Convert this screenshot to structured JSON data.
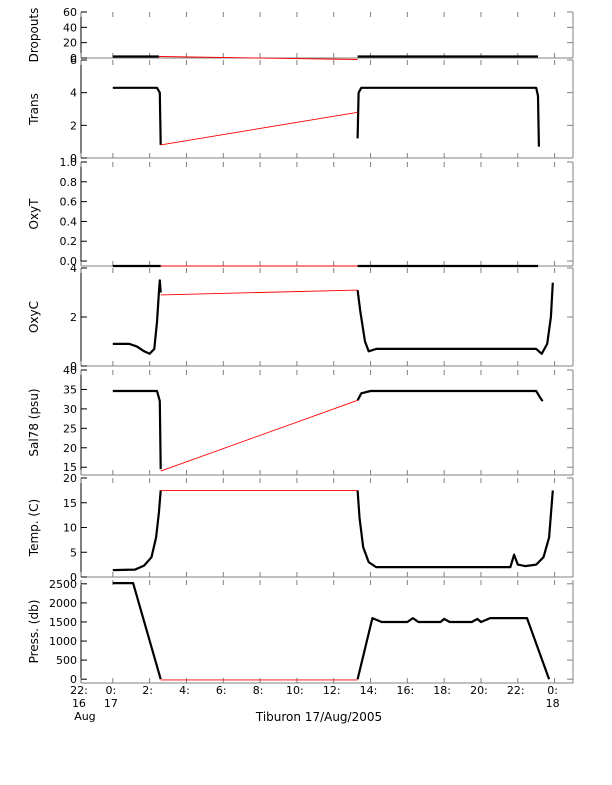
{
  "caption": "Tiburon 17/Aug/2005",
  "colors": {
    "data": "#000000",
    "interp": "#ff0000",
    "axis": "#000000",
    "grid_ticks": "#808080"
  },
  "chart_data": [
    {
      "type": "line",
      "ylabel": "Dropouts",
      "ylim": [
        0,
        60
      ],
      "yticks": [
        0,
        20,
        40,
        60
      ],
      "xlim": [
        -1.73,
        25
      ],
      "series": [
        {
          "kind": "data",
          "points": [
            [
              0,
              2
            ],
            [
              2.5,
              2
            ]
          ]
        },
        {
          "kind": "data",
          "points": [
            [
              13.3,
              2
            ],
            [
              23.1,
              2
            ]
          ]
        },
        {
          "kind": "interp",
          "points": [
            [
              2.5,
              2
            ],
            [
              13.3,
              -2
            ]
          ]
        }
      ]
    },
    {
      "type": "line",
      "ylabel": "Trans",
      "ylim": [
        0,
        6
      ],
      "yticks": [
        0,
        2,
        4,
        6
      ],
      "xlim": [
        -1.73,
        25
      ],
      "series": [
        {
          "kind": "data",
          "points": [
            [
              0,
              4.3
            ],
            [
              2.4,
              4.3
            ],
            [
              2.55,
              4.0
            ],
            [
              2.6,
              0.8
            ]
          ]
        },
        {
          "kind": "data",
          "points": [
            [
              13.3,
              1.2
            ],
            [
              13.35,
              4.0
            ],
            [
              13.5,
              4.3
            ],
            [
              23.0,
              4.3
            ],
            [
              23.1,
              3.8
            ],
            [
              23.15,
              0.7
            ]
          ]
        },
        {
          "kind": "interp",
          "points": [
            [
              2.6,
              0.8
            ],
            [
              13.3,
              2.8
            ]
          ]
        }
      ]
    },
    {
      "type": "line",
      "ylabel": "OxyT",
      "ylim": [
        -0.05,
        1.0
      ],
      "yticks": [
        0.0,
        0.2,
        0.4,
        0.6,
        0.8,
        1.0
      ],
      "ytick_labels": [
        "0.0",
        "0.2",
        "0.4",
        "0.6",
        "0.8",
        "1.0"
      ],
      "xlim": [
        -1.73,
        25
      ],
      "series": [
        {
          "kind": "data",
          "points": [
            [
              0,
              -0.05
            ],
            [
              2.6,
              -0.05
            ]
          ]
        },
        {
          "kind": "data",
          "points": [
            [
              13.3,
              -0.05
            ],
            [
              23.1,
              -0.05
            ]
          ]
        },
        {
          "kind": "interp",
          "points": [
            [
              2.6,
              -0.05
            ],
            [
              13.3,
              -0.05
            ]
          ]
        }
      ]
    },
    {
      "type": "line",
      "ylabel": "OxyC",
      "ylim": [
        0,
        4
      ],
      "yticks": [
        0,
        2,
        4
      ],
      "xlim": [
        -1.73,
        25
      ],
      "series": [
        {
          "kind": "data",
          "points": [
            [
              0,
              0.9
            ],
            [
              0.9,
              0.9
            ],
            [
              1.3,
              0.8
            ],
            [
              1.7,
              0.6
            ],
            [
              2.0,
              0.5
            ],
            [
              2.25,
              0.7
            ],
            [
              2.4,
              1.8
            ],
            [
              2.5,
              3.0
            ],
            [
              2.55,
              3.5
            ],
            [
              2.6,
              3.0
            ]
          ]
        },
        {
          "kind": "data",
          "points": [
            [
              13.3,
              3.1
            ],
            [
              13.45,
              2.2
            ],
            [
              13.7,
              1.0
            ],
            [
              13.9,
              0.6
            ],
            [
              14.3,
              0.7
            ],
            [
              23.0,
              0.7
            ],
            [
              23.3,
              0.5
            ],
            [
              23.6,
              0.9
            ],
            [
              23.8,
              2.0
            ],
            [
              23.9,
              3.4
            ]
          ]
        },
        {
          "kind": "interp",
          "points": [
            [
              2.6,
              2.9
            ],
            [
              13.3,
              3.1
            ]
          ]
        }
      ]
    },
    {
      "type": "line",
      "ylabel": "Sal78 (psu)",
      "ylim": [
        13,
        40
      ],
      "yticks": [
        15,
        20,
        25,
        30,
        35,
        40
      ],
      "xlim": [
        -1.73,
        25
      ],
      "series": [
        {
          "kind": "data",
          "points": [
            [
              0,
              34.6
            ],
            [
              2.4,
              34.6
            ],
            [
              2.55,
              32.0
            ],
            [
              2.6,
              14.5
            ]
          ]
        },
        {
          "kind": "data",
          "points": [
            [
              13.3,
              32.2
            ],
            [
              13.5,
              34.0
            ],
            [
              14.0,
              34.6
            ],
            [
              23.0,
              34.6
            ],
            [
              23.2,
              33.0
            ],
            [
              23.35,
              32.0
            ]
          ]
        },
        {
          "kind": "interp",
          "points": [
            [
              2.6,
              14.0
            ],
            [
              13.3,
              32.2
            ]
          ]
        }
      ]
    },
    {
      "type": "line",
      "ylabel": "Temp. (C)",
      "ylim": [
        0,
        20
      ],
      "yticks": [
        0,
        5,
        10,
        15,
        20
      ],
      "xlim": [
        -1.73,
        25
      ],
      "series": [
        {
          "kind": "data",
          "points": [
            [
              0,
              1.4
            ],
            [
              1.2,
              1.5
            ],
            [
              1.7,
              2.3
            ],
            [
              2.1,
              4.0
            ],
            [
              2.35,
              8.0
            ],
            [
              2.5,
              13.0
            ],
            [
              2.6,
              17.5
            ]
          ]
        },
        {
          "kind": "data",
          "points": [
            [
              13.3,
              17.5
            ],
            [
              13.4,
              12.0
            ],
            [
              13.6,
              6.0
            ],
            [
              13.9,
              3.0
            ],
            [
              14.3,
              2.0
            ],
            [
              21.6,
              2.0
            ],
            [
              21.8,
              4.5
            ],
            [
              22.0,
              2.5
            ],
            [
              22.4,
              2.2
            ],
            [
              23.0,
              2.5
            ],
            [
              23.4,
              4.0
            ],
            [
              23.7,
              8.0
            ],
            [
              23.9,
              17.5
            ]
          ]
        },
        {
          "kind": "interp",
          "points": [
            [
              2.6,
              17.5
            ],
            [
              13.3,
              17.5
            ]
          ]
        }
      ]
    },
    {
      "type": "line",
      "ylabel": "Press. (db)",
      "ylim": [
        -100,
        2600
      ],
      "yticks": [
        0,
        500,
        1000,
        1500,
        2000,
        2500
      ],
      "xlim": [
        -1.73,
        25
      ],
      "series": [
        {
          "kind": "data",
          "points": [
            [
              0,
              2520
            ],
            [
              1.1,
              2520
            ],
            [
              2.6,
              0
            ]
          ]
        },
        {
          "kind": "data",
          "points": [
            [
              13.3,
              0
            ],
            [
              14.1,
              1600
            ],
            [
              14.6,
              1500
            ],
            [
              16.0,
              1500
            ],
            [
              16.3,
              1600
            ],
            [
              16.6,
              1500
            ],
            [
              17.8,
              1500
            ],
            [
              18.0,
              1580
            ],
            [
              18.3,
              1500
            ],
            [
              19.5,
              1500
            ],
            [
              19.8,
              1580
            ],
            [
              20.0,
              1500
            ],
            [
              20.5,
              1600
            ],
            [
              22.5,
              1600
            ],
            [
              23.7,
              0
            ]
          ]
        },
        {
          "kind": "interp",
          "points": [
            [
              2.6,
              -20
            ],
            [
              13.3,
              -20
            ]
          ]
        }
      ]
    }
  ],
  "x_axis": {
    "ticks": [
      {
        "x": -1.733,
        "line1": "22:",
        "line2": "16",
        "line3": "Aug"
      },
      {
        "x": 0,
        "line1": "0:",
        "line2": "17",
        "line3": ""
      },
      {
        "x": 2,
        "line1": "",
        "line2": "2:",
        "line3": ""
      },
      {
        "x": 4,
        "line1": "",
        "line2": "4:",
        "line3": ""
      },
      {
        "x": 6,
        "line1": "",
        "line2": "6:",
        "line3": ""
      },
      {
        "x": 8,
        "line1": "",
        "line2": "8:",
        "line3": ""
      },
      {
        "x": 10,
        "line1": "",
        "line2": "10:",
        "line3": ""
      },
      {
        "x": 12,
        "line1": "",
        "line2": "12:",
        "line3": ""
      },
      {
        "x": 14,
        "line1": "",
        "line2": "14:",
        "line3": ""
      },
      {
        "x": 16,
        "line1": "",
        "line2": "16:",
        "line3": ""
      },
      {
        "x": 18,
        "line1": "",
        "line2": "18:",
        "line3": ""
      },
      {
        "x": 20,
        "line1": "",
        "line2": "20:",
        "line3": ""
      },
      {
        "x": 22,
        "line1": "",
        "line2": "22:",
        "line3": ""
      },
      {
        "x": 24,
        "line1": "0:",
        "line2": "18",
        "line3": ""
      }
    ]
  }
}
